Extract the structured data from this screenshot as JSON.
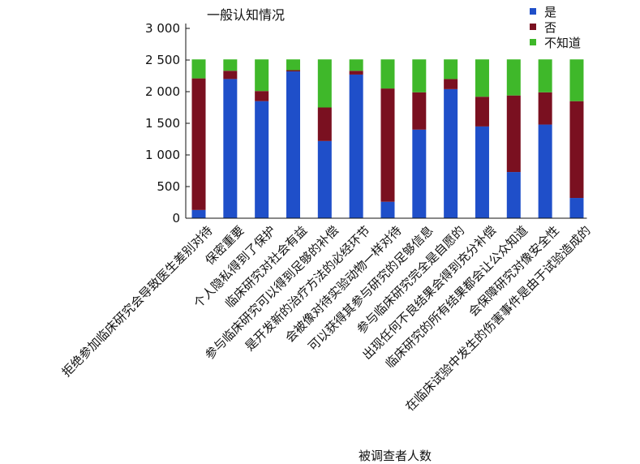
{
  "chart_data": {
    "type": "bar",
    "stacked": true,
    "title": "一般认知情况",
    "xlabel": "被调查者人数",
    "ylabel": "",
    "ylim": [
      0,
      3000
    ],
    "yticks": [
      0,
      500,
      1000,
      1500,
      2000,
      2500,
      3000
    ],
    "ytick_labels": [
      "0",
      "500",
      "1 000",
      "1 500",
      "2 000",
      "2 500",
      "3 000"
    ],
    "legend_position": "top-right",
    "grid": false,
    "categories": [
      "拒绝参加临床研究会导致医生差别对待",
      "保密重要",
      "个人隐私得到了保护",
      "临床研究对社会有益",
      "参与临床研究可以得到足够的补偿",
      "是开发新的治疗方法的必经环节",
      "会被像对待实验动物一样对待",
      "可以获得其参与研究的足够信息",
      "参与临床研究完全是自愿的",
      "出现任何不良结果会得到充分补偿",
      "临床研究的所有结果都会让公众知道",
      "会保障研究对像安全性",
      "在临床试验中发生的伤害事件是由于试验造成的"
    ],
    "series": [
      {
        "name": "是",
        "color": "#1f4fc9",
        "values": [
          130,
          2200,
          1850,
          2320,
          1220,
          2270,
          260,
          1400,
          2040,
          1450,
          730,
          1480,
          320
        ]
      },
      {
        "name": "否",
        "color": "#7a1020",
        "values": [
          2080,
          130,
          160,
          20,
          530,
          60,
          1790,
          590,
          160,
          470,
          1210,
          510,
          1530
        ]
      },
      {
        "name": "不知道",
        "color": "#3fb82a",
        "values": [
          300,
          180,
          500,
          170,
          760,
          180,
          460,
          520,
          310,
          590,
          570,
          520,
          660
        ]
      }
    ]
  }
}
